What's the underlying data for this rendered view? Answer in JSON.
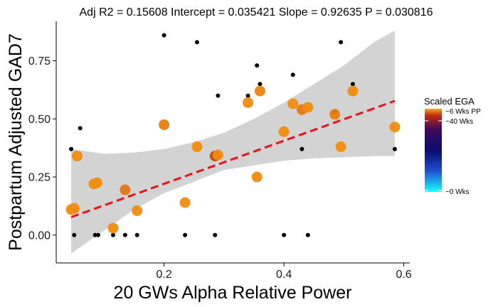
{
  "chart_data": {
    "type": "scatter",
    "title": "Adj R2 =  0.15608 Intercept = 0.035421  Slope = 0.92635  P = 0.030816",
    "xlabel": "20 GWs Alpha Relative Power",
    "ylabel": "Postpartum Adjusted GAD7",
    "xlim": [
      0.02,
      0.61
    ],
    "ylim": [
      -0.12,
      0.92
    ],
    "x_ticks": [
      0.2,
      0.4,
      0.6
    ],
    "x_tick_labels": [
      "0.2",
      "0.4",
      "0.6"
    ],
    "y_ticks": [
      0.0,
      0.25,
      0.5,
      0.75
    ],
    "y_tick_labels": [
      "0.00",
      "0.25",
      "0.50",
      "0.75"
    ],
    "grid": false,
    "regression": {
      "intercept": 0.035421,
      "slope": 0.92635,
      "x_range": [
        0.045,
        0.585
      ],
      "line_color": "#e8141c",
      "line_style": "dashed"
    },
    "confidence_band": {
      "x": [
        0.045,
        0.1,
        0.15,
        0.2,
        0.25,
        0.3,
        0.35,
        0.4,
        0.45,
        0.5,
        0.55,
        0.585
      ],
      "lower": [
        -0.08,
        0.02,
        0.11,
        0.18,
        0.23,
        0.28,
        0.3,
        0.32,
        0.33,
        0.335,
        0.34,
        0.34
      ],
      "upper": [
        0.37,
        0.35,
        0.355,
        0.37,
        0.4,
        0.44,
        0.5,
        0.57,
        0.65,
        0.73,
        0.83,
        0.88
      ],
      "color": "#d3d3d3"
    },
    "small_points": [
      {
        "x": 0.045,
        "y": 0.37
      },
      {
        "x": 0.05,
        "y": 0.0
      },
      {
        "x": 0.06,
        "y": 0.46
      },
      {
        "x": 0.085,
        "y": 0.0
      },
      {
        "x": 0.09,
        "y": 0.0
      },
      {
        "x": 0.115,
        "y": 0.0
      },
      {
        "x": 0.135,
        "y": 0.0
      },
      {
        "x": 0.155,
        "y": 0.0
      },
      {
        "x": 0.2,
        "y": 0.86
      },
      {
        "x": 0.235,
        "y": 0.0
      },
      {
        "x": 0.255,
        "y": 0.83
      },
      {
        "x": 0.285,
        "y": 0.0
      },
      {
        "x": 0.29,
        "y": 0.6
      },
      {
        "x": 0.34,
        "y": 0.6
      },
      {
        "x": 0.355,
        "y": 0.73
      },
      {
        "x": 0.36,
        "y": 0.65
      },
      {
        "x": 0.4,
        "y": 0.0
      },
      {
        "x": 0.415,
        "y": 0.69
      },
      {
        "x": 0.43,
        "y": 0.37
      },
      {
        "x": 0.44,
        "y": 0.0
      },
      {
        "x": 0.485,
        "y": 0.53
      },
      {
        "x": 0.495,
        "y": 0.83
      },
      {
        "x": 0.515,
        "y": 0.65
      },
      {
        "x": 0.585,
        "y": 0.37
      }
    ],
    "ega_points": [
      {
        "x": 0.045,
        "y": 0.11,
        "color": "#f28c0f"
      },
      {
        "x": 0.05,
        "y": 0.115,
        "color": "#f28c0f"
      },
      {
        "x": 0.055,
        "y": 0.34,
        "color": "#f28c0f"
      },
      {
        "x": 0.083,
        "y": 0.22,
        "color": "#f28c0f"
      },
      {
        "x": 0.088,
        "y": 0.225,
        "color": "#f28c0f"
      },
      {
        "x": 0.115,
        "y": 0.03,
        "color": "#f28c0f"
      },
      {
        "x": 0.135,
        "y": 0.195,
        "color": "#e0781a"
      },
      {
        "x": 0.155,
        "y": 0.105,
        "color": "#f28c0f"
      },
      {
        "x": 0.2,
        "y": 0.475,
        "color": "#ea7d0c"
      },
      {
        "x": 0.235,
        "y": 0.14,
        "color": "#f28c0f"
      },
      {
        "x": 0.255,
        "y": 0.38,
        "color": "#f28c0f"
      },
      {
        "x": 0.285,
        "y": 0.34,
        "color": "#c24e10"
      },
      {
        "x": 0.29,
        "y": 0.345,
        "color": "#f28c0f"
      },
      {
        "x": 0.34,
        "y": 0.57,
        "color": "#f28c0f"
      },
      {
        "x": 0.355,
        "y": 0.25,
        "color": "#f28c0f"
      },
      {
        "x": 0.36,
        "y": 0.62,
        "color": "#ef850e"
      },
      {
        "x": 0.4,
        "y": 0.445,
        "color": "#f28c0f"
      },
      {
        "x": 0.415,
        "y": 0.565,
        "color": "#f28c0f"
      },
      {
        "x": 0.43,
        "y": 0.54,
        "color": "#e67a0e"
      },
      {
        "x": 0.44,
        "y": 0.55,
        "color": "#f28c0f"
      },
      {
        "x": 0.485,
        "y": 0.52,
        "color": "#ea7d0c"
      },
      {
        "x": 0.495,
        "y": 0.38,
        "color": "#f28c0f"
      },
      {
        "x": 0.515,
        "y": 0.62,
        "color": "#f28c0f"
      },
      {
        "x": 0.585,
        "y": 0.465,
        "color": "#f28c0f"
      }
    ],
    "legend": {
      "title": "Scaled EGA",
      "placement": "right",
      "labels": [
        "~6 Wks PP",
        "~40 Wks",
        "~0 Wks"
      ],
      "gradient_stops": [
        "#ffa51c",
        "#c32a14",
        "#3d0a5e",
        "#0a0a6e",
        "#1f4fd0",
        "#19ffff"
      ]
    }
  }
}
